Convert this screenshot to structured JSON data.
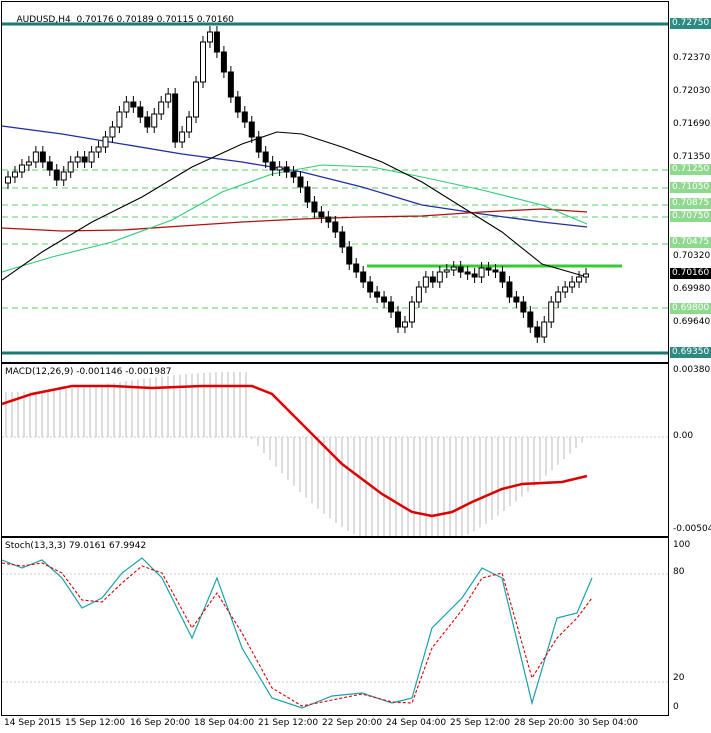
{
  "header": {
    "symbol": "AUDUSD,H4",
    "ohlc": "0.70176 0.70189 0.70115 0.70160"
  },
  "colors": {
    "candle": "#000000",
    "ma_black": "#000000",
    "ma_blue": "#1f2fa0",
    "ma_red": "#b01010",
    "ma_green": "#2ecc7a",
    "hline_teal": "#1b7a72",
    "hline_green": "#33cc33",
    "dashed_green": "#5fcf6a",
    "macd_signal": "#dd0000",
    "macd_hist": "#b8b8b8",
    "stoch_main": "#1aa1a8",
    "stoch_signal": "#dd0000",
    "axis_tag_green": "#8fd98f",
    "axis_tag_teal": "#2d8a82",
    "axis_tag_current": "#000000"
  },
  "price_axis": {
    "labels": [
      "0.72370",
      "0.72030",
      "0.71690",
      "0.71350",
      "0.70320",
      "0.69980",
      "0.69640"
    ],
    "tags": [
      {
        "text": "0.72750",
        "style": "teal"
      },
      {
        "text": "0.71250",
        "style": "green"
      },
      {
        "text": "0.71050",
        "style": "green"
      },
      {
        "text": "0.70875",
        "style": "green"
      },
      {
        "text": "0.70750",
        "style": "green"
      },
      {
        "text": "0.70475",
        "style": "green"
      },
      {
        "text": "0.70160",
        "style": "current"
      },
      {
        "text": "0.69800",
        "style": "green"
      },
      {
        "text": "0.69350",
        "style": "teal"
      }
    ]
  },
  "macd": {
    "title": "MACD(12,26,9) -0.001146 -0.001987",
    "axis_labels": [
      "0.003805",
      "0.00",
      "-0.005045"
    ]
  },
  "stoch": {
    "title": "Stoch(13,3,3) 79.0161 67.9942",
    "axis_labels": [
      "100",
      "80",
      "20",
      "0"
    ]
  },
  "time_axis": [
    "14 Sep 2015",
    "15 Sep 12:00",
    "16 Sep 20:00",
    "18 Sep 04:00",
    "21 Sep 12:00",
    "22 Sep 20:00",
    "24 Sep 04:00",
    "25 Sep 12:00",
    "28 Sep 20:00",
    "30 Sep 04:00"
  ]
}
